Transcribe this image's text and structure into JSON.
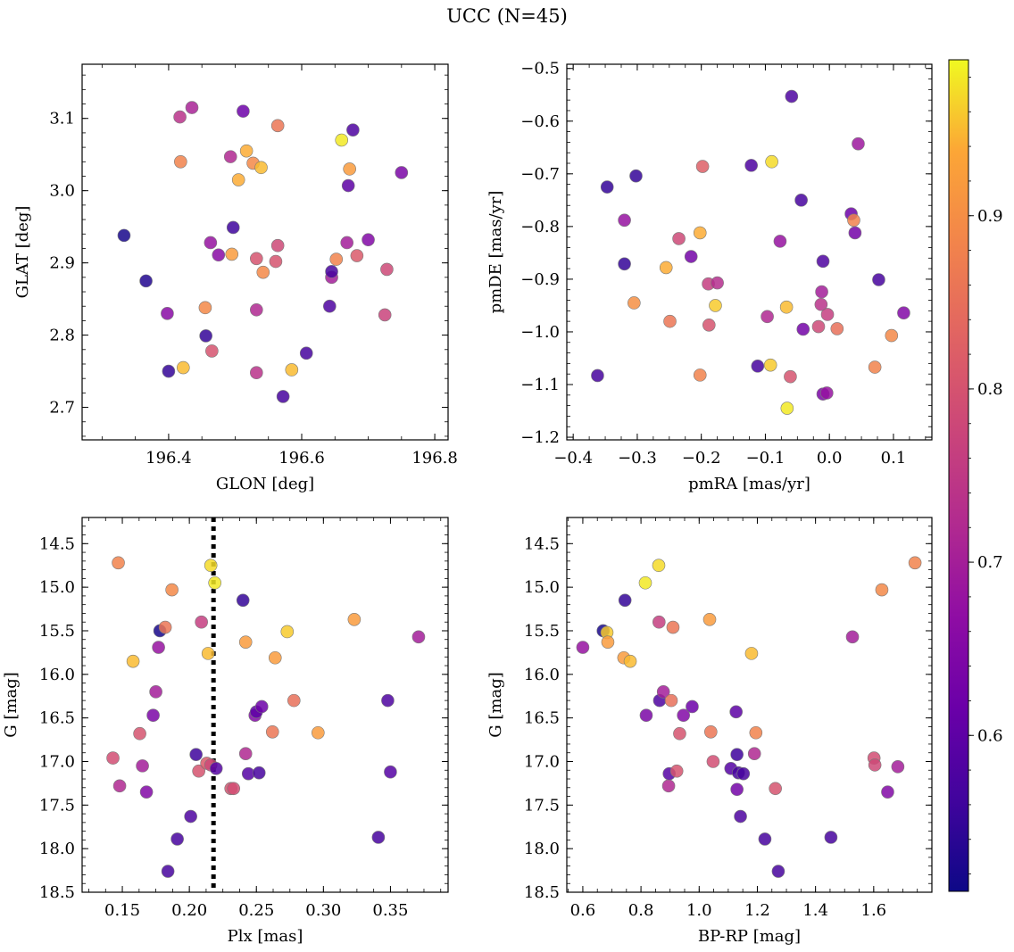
{
  "figure_title": "UCC (N=45)",
  "chart_data": [
    {
      "type": "scatter",
      "xlabel": "GLON [deg]",
      "ylabel": "GLAT [deg]",
      "xlim": [
        196.27,
        196.82
      ],
      "ylim": [
        2.655,
        3.175
      ],
      "xticks": [
        196.4,
        196.6,
        196.8
      ],
      "yticks": [
        2.7,
        2.8,
        2.9,
        3.0,
        3.1
      ],
      "xtick_labels": [
        "196.4",
        "196.6",
        "196.8"
      ],
      "ytick_labels": [
        "2.7",
        "2.8",
        "2.9",
        "3.0",
        "3.1"
      ],
      "points": [
        {
          "x": 196.333,
          "y": 2.938,
          "c": 0.52
        },
        {
          "x": 196.366,
          "y": 2.875,
          "c": 0.53
        },
        {
          "x": 196.4,
          "y": 2.75,
          "c": 0.55
        },
        {
          "x": 196.398,
          "y": 2.83,
          "c": 0.66
        },
        {
          "x": 196.417,
          "y": 3.102,
          "c": 0.74
        },
        {
          "x": 196.418,
          "y": 3.04,
          "c": 0.88
        },
        {
          "x": 196.422,
          "y": 2.755,
          "c": 0.95
        },
        {
          "x": 196.435,
          "y": 3.115,
          "c": 0.71
        },
        {
          "x": 196.455,
          "y": 2.838,
          "c": 0.89
        },
        {
          "x": 196.456,
          "y": 2.799,
          "c": 0.55
        },
        {
          "x": 196.463,
          "y": 2.928,
          "c": 0.68
        },
        {
          "x": 196.465,
          "y": 2.778,
          "c": 0.8
        },
        {
          "x": 196.475,
          "y": 2.911,
          "c": 0.66
        },
        {
          "x": 196.493,
          "y": 3.047,
          "c": 0.72
        },
        {
          "x": 196.495,
          "y": 2.912,
          "c": 0.92
        },
        {
          "x": 196.497,
          "y": 2.949,
          "c": 0.56
        },
        {
          "x": 196.505,
          "y": 3.015,
          "c": 0.94
        },
        {
          "x": 196.512,
          "y": 3.11,
          "c": 0.62
        },
        {
          "x": 196.517,
          "y": 3.055,
          "c": 0.94
        },
        {
          "x": 196.527,
          "y": 3.038,
          "c": 0.89
        },
        {
          "x": 196.532,
          "y": 2.906,
          "c": 0.8
        },
        {
          "x": 196.532,
          "y": 2.835,
          "c": 0.72
        },
        {
          "x": 196.532,
          "y": 2.748,
          "c": 0.74
        },
        {
          "x": 196.539,
          "y": 3.032,
          "c": 0.95
        },
        {
          "x": 196.542,
          "y": 2.887,
          "c": 0.89
        },
        {
          "x": 196.561,
          "y": 2.902,
          "c": 0.8
        },
        {
          "x": 196.564,
          "y": 2.924,
          "c": 0.78
        },
        {
          "x": 196.564,
          "y": 3.09,
          "c": 0.86
        },
        {
          "x": 196.572,
          "y": 2.715,
          "c": 0.57
        },
        {
          "x": 196.585,
          "y": 2.752,
          "c": 0.95
        },
        {
          "x": 196.607,
          "y": 2.775,
          "c": 0.57
        },
        {
          "x": 196.642,
          "y": 2.84,
          "c": 0.58
        },
        {
          "x": 196.645,
          "y": 2.88,
          "c": 0.7
        },
        {
          "x": 196.645,
          "y": 2.888,
          "c": 0.57
        },
        {
          "x": 196.652,
          "y": 2.905,
          "c": 0.88
        },
        {
          "x": 196.66,
          "y": 3.07,
          "c": 0.98
        },
        {
          "x": 196.668,
          "y": 2.928,
          "c": 0.7
        },
        {
          "x": 196.67,
          "y": 3.007,
          "c": 0.6
        },
        {
          "x": 196.672,
          "y": 3.03,
          "c": 0.92
        },
        {
          "x": 196.677,
          "y": 3.084,
          "c": 0.58
        },
        {
          "x": 196.683,
          "y": 2.91,
          "c": 0.81
        },
        {
          "x": 196.7,
          "y": 2.932,
          "c": 0.65
        },
        {
          "x": 196.725,
          "y": 2.828,
          "c": 0.77
        },
        {
          "x": 196.728,
          "y": 2.891,
          "c": 0.78
        },
        {
          "x": 196.75,
          "y": 3.025,
          "c": 0.64
        }
      ]
    },
    {
      "type": "scatter",
      "xlabel": "pmRA [mas/yr]",
      "ylabel": "pmDE [mas/yr]",
      "xlim": [
        -0.41,
        0.16
      ],
      "ylim": [
        -1.205,
        -0.492
      ],
      "xticks": [
        -0.4,
        -0.3,
        -0.2,
        -0.1,
        0.0,
        0.1
      ],
      "yticks": [
        -1.2,
        -1.1,
        -1.0,
        -0.9,
        -0.8,
        -0.7,
        -0.6,
        -0.5
      ],
      "xtick_labels": [
        "−0.4",
        "−0.3",
        "−0.2",
        "−0.1",
        "0.0",
        "0.1"
      ],
      "ytick_labels": [
        "−1.2",
        "−1.1",
        "−1.0",
        "−0.9",
        "−0.8",
        "−0.7",
        "−0.6",
        "−0.5"
      ],
      "points": [
        {
          "x": -0.362,
          "y": -1.083,
          "c": 0.57
        },
        {
          "x": -0.347,
          "y": -0.725,
          "c": 0.55
        },
        {
          "x": -0.32,
          "y": -0.871,
          "c": 0.55
        },
        {
          "x": -0.32,
          "y": -0.788,
          "c": 0.68
        },
        {
          "x": -0.305,
          "y": -0.945,
          "c": 0.9
        },
        {
          "x": -0.302,
          "y": -0.704,
          "c": 0.55
        },
        {
          "x": -0.255,
          "y": -0.878,
          "c": 0.94
        },
        {
          "x": -0.249,
          "y": -0.98,
          "c": 0.86
        },
        {
          "x": -0.235,
          "y": -0.823,
          "c": 0.78
        },
        {
          "x": -0.216,
          "y": -0.857,
          "c": 0.63
        },
        {
          "x": -0.202,
          "y": -1.082,
          "c": 0.88
        },
        {
          "x": -0.202,
          "y": -0.812,
          "c": 0.94
        },
        {
          "x": -0.198,
          "y": -0.686,
          "c": 0.82
        },
        {
          "x": -0.189,
          "y": -0.909,
          "c": 0.76
        },
        {
          "x": -0.188,
          "y": -0.987,
          "c": 0.8
        },
        {
          "x": -0.178,
          "y": -0.95,
          "c": 0.96
        },
        {
          "x": -0.175,
          "y": -0.907,
          "c": 0.73
        },
        {
          "x": -0.122,
          "y": -0.684,
          "c": 0.58
        },
        {
          "x": -0.112,
          "y": -1.065,
          "c": 0.57
        },
        {
          "x": -0.097,
          "y": -0.971,
          "c": 0.72
        },
        {
          "x": -0.092,
          "y": -1.063,
          "c": 0.96
        },
        {
          "x": -0.09,
          "y": -0.677,
          "c": 0.97
        },
        {
          "x": -0.077,
          "y": -0.828,
          "c": 0.68
        },
        {
          "x": -0.067,
          "y": -0.953,
          "c": 0.95
        },
        {
          "x": -0.066,
          "y": -1.145,
          "c": 0.98
        },
        {
          "x": -0.061,
          "y": -1.085,
          "c": 0.8
        },
        {
          "x": -0.059,
          "y": -0.553,
          "c": 0.58
        },
        {
          "x": -0.044,
          "y": -0.75,
          "c": 0.57
        },
        {
          "x": -0.041,
          "y": -0.995,
          "c": 0.63
        },
        {
          "x": -0.017,
          "y": -0.99,
          "c": 0.78
        },
        {
          "x": -0.013,
          "y": -0.948,
          "c": 0.74
        },
        {
          "x": -0.012,
          "y": -0.924,
          "c": 0.7
        },
        {
          "x": -0.01,
          "y": -1.118,
          "c": 0.64
        },
        {
          "x": -0.01,
          "y": -0.866,
          "c": 0.58
        },
        {
          "x": -0.004,
          "y": -1.116,
          "c": 0.68
        },
        {
          "x": -0.003,
          "y": -0.967,
          "c": 0.76
        },
        {
          "x": 0.012,
          "y": -0.994,
          "c": 0.85
        },
        {
          "x": 0.034,
          "y": -0.776,
          "c": 0.62
        },
        {
          "x": 0.038,
          "y": -0.788,
          "c": 0.88
        },
        {
          "x": 0.04,
          "y": -0.812,
          "c": 0.63
        },
        {
          "x": 0.045,
          "y": -0.643,
          "c": 0.69
        },
        {
          "x": 0.071,
          "y": -1.067,
          "c": 0.88
        },
        {
          "x": 0.077,
          "y": -0.901,
          "c": 0.57
        },
        {
          "x": 0.097,
          "y": -1.007,
          "c": 0.89
        },
        {
          "x": 0.116,
          "y": -0.964,
          "c": 0.65
        }
      ]
    },
    {
      "type": "scatter",
      "xlabel": "Plx [mas]",
      "ylabel": "G [mag]",
      "xlim": [
        0.12,
        0.393
      ],
      "ylim": [
        18.5,
        14.2
      ],
      "y_inverted": true,
      "vline_x": 0.218,
      "xticks": [
        0.15,
        0.2,
        0.25,
        0.3,
        0.35
      ],
      "yticks": [
        14.5,
        15.0,
        15.5,
        16.0,
        16.5,
        17.0,
        17.5,
        18.0,
        18.5
      ],
      "xtick_labels": [
        "0.15",
        "0.20",
        "0.25",
        "0.30",
        "0.35"
      ],
      "ytick_labels": [
        "14.5",
        "15.0",
        "15.5",
        "16.0",
        "16.5",
        "17.0",
        "17.5",
        "18.0",
        "18.5"
      ],
      "points": [
        {
          "x": 0.143,
          "y": 16.96,
          "c": 0.79
        },
        {
          "x": 0.147,
          "y": 14.72,
          "c": 0.88
        },
        {
          "x": 0.148,
          "y": 17.28,
          "c": 0.72
        },
        {
          "x": 0.158,
          "y": 15.85,
          "c": 0.95
        },
        {
          "x": 0.163,
          "y": 16.68,
          "c": 0.8
        },
        {
          "x": 0.165,
          "y": 17.05,
          "c": 0.7
        },
        {
          "x": 0.168,
          "y": 17.35,
          "c": 0.65
        },
        {
          "x": 0.173,
          "y": 16.47,
          "c": 0.64
        },
        {
          "x": 0.175,
          "y": 16.2,
          "c": 0.7
        },
        {
          "x": 0.177,
          "y": 15.69,
          "c": 0.68
        },
        {
          "x": 0.178,
          "y": 15.5,
          "c": 0.52
        },
        {
          "x": 0.182,
          "y": 15.46,
          "c": 0.86
        },
        {
          "x": 0.184,
          "y": 18.26,
          "c": 0.57
        },
        {
          "x": 0.187,
          "y": 15.03,
          "c": 0.89
        },
        {
          "x": 0.191,
          "y": 17.89,
          "c": 0.57
        },
        {
          "x": 0.201,
          "y": 17.63,
          "c": 0.58
        },
        {
          "x": 0.205,
          "y": 16.92,
          "c": 0.56
        },
        {
          "x": 0.207,
          "y": 17.11,
          "c": 0.8
        },
        {
          "x": 0.209,
          "y": 15.4,
          "c": 0.76
        },
        {
          "x": 0.213,
          "y": 17.02,
          "c": 0.81
        },
        {
          "x": 0.214,
          "y": 15.76,
          "c": 0.95
        },
        {
          "x": 0.216,
          "y": 17.04,
          "c": 0.78
        },
        {
          "x": 0.216,
          "y": 14.75,
          "c": 0.97
        },
        {
          "x": 0.219,
          "y": 14.95,
          "c": 0.98
        },
        {
          "x": 0.22,
          "y": 17.08,
          "c": 0.59
        },
        {
          "x": 0.231,
          "y": 17.31,
          "c": 0.8
        },
        {
          "x": 0.233,
          "y": 17.31,
          "c": 0.79
        },
        {
          "x": 0.24,
          "y": 15.15,
          "c": 0.55
        },
        {
          "x": 0.242,
          "y": 16.91,
          "c": 0.72
        },
        {
          "x": 0.242,
          "y": 15.63,
          "c": 0.92
        },
        {
          "x": 0.244,
          "y": 17.14,
          "c": 0.59
        },
        {
          "x": 0.249,
          "y": 16.47,
          "c": 0.65
        },
        {
          "x": 0.25,
          "y": 16.43,
          "c": 0.6
        },
        {
          "x": 0.252,
          "y": 17.13,
          "c": 0.57
        },
        {
          "x": 0.254,
          "y": 16.37,
          "c": 0.62
        },
        {
          "x": 0.262,
          "y": 16.66,
          "c": 0.86
        },
        {
          "x": 0.264,
          "y": 15.81,
          "c": 0.92
        },
        {
          "x": 0.273,
          "y": 15.51,
          "c": 0.96
        },
        {
          "x": 0.278,
          "y": 16.3,
          "c": 0.85
        },
        {
          "x": 0.296,
          "y": 16.67,
          "c": 0.92
        },
        {
          "x": 0.323,
          "y": 15.37,
          "c": 0.92
        },
        {
          "x": 0.341,
          "y": 17.87,
          "c": 0.57
        },
        {
          "x": 0.348,
          "y": 16.3,
          "c": 0.58
        },
        {
          "x": 0.35,
          "y": 17.12,
          "c": 0.59
        },
        {
          "x": 0.371,
          "y": 15.57,
          "c": 0.7
        }
      ]
    },
    {
      "type": "scatter",
      "xlabel": "BP-RP [mag]",
      "ylabel": "G [mag]",
      "xlim": [
        0.545,
        1.8
      ],
      "ylim": [
        18.5,
        14.2
      ],
      "y_inverted": true,
      "xticks": [
        0.6,
        0.8,
        1.0,
        1.2,
        1.4,
        1.6
      ],
      "yticks": [
        14.5,
        15.0,
        15.5,
        16.0,
        16.5,
        17.0,
        17.5,
        18.0,
        18.5
      ],
      "xtick_labels": [
        "0.6",
        "0.8",
        "1.0",
        "1.2",
        "1.4",
        "1.6"
      ],
      "ytick_labels": [
        "14.5",
        "15.0",
        "15.5",
        "16.0",
        "16.5",
        "17.0",
        "17.5",
        "18.0",
        "18.5"
      ],
      "points": [
        {
          "x": 0.6,
          "y": 15.69,
          "c": 0.68
        },
        {
          "x": 0.67,
          "y": 15.5,
          "c": 0.52
        },
        {
          "x": 0.683,
          "y": 15.52,
          "c": 0.96
        },
        {
          "x": 0.686,
          "y": 15.63,
          "c": 0.92
        },
        {
          "x": 0.741,
          "y": 15.81,
          "c": 0.92
        },
        {
          "x": 0.745,
          "y": 15.15,
          "c": 0.55
        },
        {
          "x": 0.763,
          "y": 15.85,
          "c": 0.95
        },
        {
          "x": 0.815,
          "y": 14.95,
          "c": 0.98
        },
        {
          "x": 0.818,
          "y": 16.47,
          "c": 0.64
        },
        {
          "x": 0.861,
          "y": 14.75,
          "c": 0.97
        },
        {
          "x": 0.862,
          "y": 15.4,
          "c": 0.76
        },
        {
          "x": 0.864,
          "y": 16.3,
          "c": 0.58
        },
        {
          "x": 0.877,
          "y": 16.2,
          "c": 0.7
        },
        {
          "x": 0.895,
          "y": 17.28,
          "c": 0.72
        },
        {
          "x": 0.897,
          "y": 17.14,
          "c": 0.59
        },
        {
          "x": 0.904,
          "y": 16.3,
          "c": 0.85
        },
        {
          "x": 0.91,
          "y": 15.46,
          "c": 0.86
        },
        {
          "x": 0.923,
          "y": 17.11,
          "c": 0.8
        },
        {
          "x": 0.933,
          "y": 16.68,
          "c": 0.8
        },
        {
          "x": 0.946,
          "y": 16.47,
          "c": 0.65
        },
        {
          "x": 0.976,
          "y": 16.37,
          "c": 0.62
        },
        {
          "x": 1.036,
          "y": 15.37,
          "c": 0.92
        },
        {
          "x": 1.04,
          "y": 16.66,
          "c": 0.86
        },
        {
          "x": 1.048,
          "y": 17.0,
          "c": 0.79
        },
        {
          "x": 1.109,
          "y": 17.08,
          "c": 0.59
        },
        {
          "x": 1.127,
          "y": 16.43,
          "c": 0.6
        },
        {
          "x": 1.13,
          "y": 16.92,
          "c": 0.56
        },
        {
          "x": 1.13,
          "y": 17.32,
          "c": 0.63
        },
        {
          "x": 1.135,
          "y": 17.13,
          "c": 0.57
        },
        {
          "x": 1.142,
          "y": 17.63,
          "c": 0.58
        },
        {
          "x": 1.152,
          "y": 17.14,
          "c": 0.57
        },
        {
          "x": 1.18,
          "y": 15.76,
          "c": 0.95
        },
        {
          "x": 1.19,
          "y": 16.91,
          "c": 0.72
        },
        {
          "x": 1.195,
          "y": 16.67,
          "c": 0.88
        },
        {
          "x": 1.226,
          "y": 17.89,
          "c": 0.57
        },
        {
          "x": 1.262,
          "y": 17.31,
          "c": 0.8
        },
        {
          "x": 1.272,
          "y": 18.26,
          "c": 0.57
        },
        {
          "x": 1.453,
          "y": 17.87,
          "c": 0.57
        },
        {
          "x": 1.527,
          "y": 15.57,
          "c": 0.7
        },
        {
          "x": 1.601,
          "y": 16.96,
          "c": 0.79
        },
        {
          "x": 1.604,
          "y": 17.04,
          "c": 0.78
        },
        {
          "x": 1.628,
          "y": 15.03,
          "c": 0.89
        },
        {
          "x": 1.648,
          "y": 17.35,
          "c": 0.65
        },
        {
          "x": 1.683,
          "y": 17.06,
          "c": 0.7
        },
        {
          "x": 1.742,
          "y": 14.72,
          "c": 0.88
        }
      ]
    }
  ],
  "colorbar": {
    "cmap": "plasma",
    "range": [
      0.51,
      0.99
    ],
    "ticks": [
      0.6,
      0.7,
      0.8,
      0.9
    ],
    "tick_labels": [
      "0.6",
      "0.7",
      "0.8",
      "0.9"
    ]
  }
}
